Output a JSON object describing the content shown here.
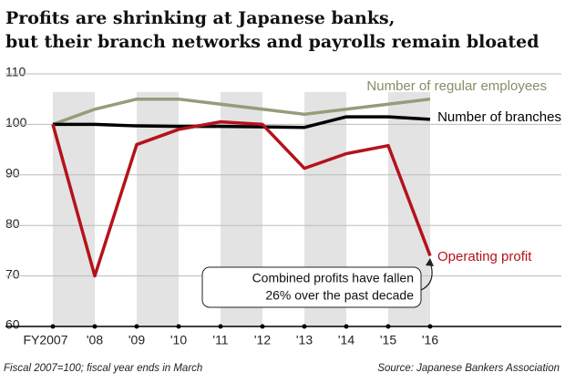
{
  "chart_data": {
    "type": "line",
    "title": [
      "Profits are shrinking at Japanese banks,",
      "but their branch networks and payrolls remain bloated"
    ],
    "categories": [
      "FY2007",
      "'08",
      "'09",
      "'10",
      "'11",
      "'12",
      "'13",
      "'14",
      "'15",
      "'16"
    ],
    "series": [
      {
        "name": "Number of regular employees",
        "color": "#9a9a7a",
        "values": [
          100,
          103,
          105,
          105,
          104,
          103,
          102,
          103,
          104,
          105
        ]
      },
      {
        "name": "Number of branches",
        "color": "#000000",
        "values": [
          100,
          100,
          99.7,
          99.6,
          99.6,
          99.5,
          99.4,
          101.5,
          101.5,
          101
        ]
      },
      {
        "name": "Operating profit",
        "color": "#b5121b",
        "values": [
          100,
          70,
          96,
          99,
          100.5,
          100,
          91.3,
          94.2,
          95.8,
          74
        ]
      }
    ],
    "ylim": [
      60,
      110
    ],
    "yticks": [
      60,
      70,
      80,
      90,
      100,
      110
    ],
    "grid": true,
    "annotation": [
      "Combined profits have fallen",
      "26% over the past decade"
    ],
    "note": "Fiscal 2007=100; fiscal year ends in March",
    "source": "Source: Japanese Bankers Association"
  }
}
